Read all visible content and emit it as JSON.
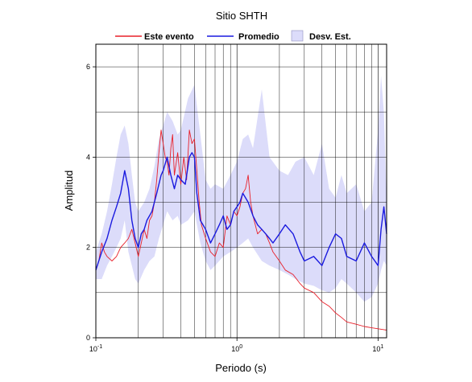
{
  "chart_data": {
    "type": "line",
    "title": "Sitio SHTH",
    "xlabel": "Periodo (s)",
    "ylabel": "Amplitud",
    "x_scale": "log",
    "xlim": [
      0.1,
      11.5
    ],
    "ylim": [
      0,
      6.5
    ],
    "x_ticks": [
      {
        "value": 0.1,
        "base": "10",
        "exp": "-1"
      },
      {
        "value": 1,
        "base": "10",
        "exp": "0"
      },
      {
        "value": 10,
        "base": "10",
        "exp": "1"
      }
    ],
    "y_ticks": [
      {
        "value": 0,
        "label": "0"
      },
      {
        "value": 2,
        "label": "2"
      },
      {
        "value": 4,
        "label": "4"
      },
      {
        "value": 6,
        "label": "6"
      }
    ],
    "grid": true,
    "legend_position": "top",
    "legend": [
      {
        "label": "Este evento",
        "color": "#e8202a",
        "kind": "line"
      },
      {
        "label": "Promedio",
        "color": "#1a1adf",
        "kind": "line"
      },
      {
        "label": "Desv. Est.",
        "color": "#dcdcfa",
        "kind": "band"
      }
    ],
    "series": [
      {
        "name": "Este evento",
        "color": "#e8202a",
        "x": [
          0.1,
          0.105,
          0.11,
          0.115,
          0.12,
          0.13,
          0.14,
          0.15,
          0.16,
          0.17,
          0.18,
          0.19,
          0.2,
          0.21,
          0.22,
          0.23,
          0.24,
          0.25,
          0.26,
          0.27,
          0.28,
          0.29,
          0.3,
          0.31,
          0.32,
          0.33,
          0.34,
          0.35,
          0.36,
          0.38,
          0.4,
          0.42,
          0.44,
          0.46,
          0.48,
          0.5,
          0.52,
          0.54,
          0.56,
          0.6,
          0.65,
          0.7,
          0.75,
          0.8,
          0.85,
          0.9,
          0.95,
          1.0,
          1.05,
          1.1,
          1.15,
          1.2,
          1.25,
          1.3,
          1.4,
          1.5,
          1.6,
          1.7,
          1.8,
          2.0,
          2.2,
          2.5,
          2.8,
          3.0,
          3.5,
          4.0,
          4.5,
          5.0,
          5.5,
          6.0,
          7.0,
          8.0,
          9.0,
          10.0,
          11.0,
          11.5
        ],
        "y": [
          1.5,
          1.7,
          2.1,
          1.9,
          1.8,
          1.7,
          1.8,
          2.0,
          2.1,
          2.2,
          2.4,
          2.1,
          1.8,
          2.1,
          2.4,
          2.2,
          2.6,
          2.7,
          3.0,
          3.5,
          4.1,
          4.6,
          4.3,
          4.0,
          3.9,
          3.6,
          4.2,
          4.5,
          3.6,
          4.1,
          3.4,
          4.0,
          3.5,
          4.6,
          4.3,
          4.4,
          3.7,
          3.0,
          2.5,
          2.2,
          1.9,
          1.8,
          2.1,
          2.0,
          2.7,
          2.5,
          2.8,
          2.7,
          2.9,
          3.2,
          3.3,
          3.6,
          3.0,
          2.7,
          2.3,
          2.4,
          2.3,
          2.1,
          1.9,
          1.7,
          1.5,
          1.4,
          1.2,
          1.1,
          1.0,
          0.8,
          0.7,
          0.55,
          0.45,
          0.35,
          0.3,
          0.25,
          0.22,
          0.2,
          0.18,
          0.17
        ]
      },
      {
        "name": "Promedio",
        "color": "#1a1adf",
        "x": [
          0.1,
          0.11,
          0.12,
          0.13,
          0.14,
          0.15,
          0.16,
          0.17,
          0.18,
          0.19,
          0.2,
          0.21,
          0.22,
          0.23,
          0.25,
          0.27,
          0.29,
          0.3,
          0.32,
          0.34,
          0.36,
          0.38,
          0.4,
          0.43,
          0.46,
          0.48,
          0.5,
          0.52,
          0.55,
          0.6,
          0.65,
          0.7,
          0.75,
          0.8,
          0.85,
          0.9,
          0.95,
          1.0,
          1.05,
          1.1,
          1.15,
          1.2,
          1.3,
          1.4,
          1.5,
          1.6,
          1.7,
          1.8,
          2.0,
          2.2,
          2.5,
          2.8,
          3.0,
          3.5,
          4.0,
          4.5,
          5.0,
          5.5,
          6.0,
          7.0,
          8.0,
          9.0,
          10.0,
          10.5,
          11.0,
          11.5
        ],
        "y": [
          1.5,
          1.9,
          2.2,
          2.6,
          2.9,
          3.2,
          3.7,
          3.3,
          2.6,
          2.2,
          2.0,
          2.3,
          2.4,
          2.6,
          2.8,
          3.2,
          3.6,
          3.7,
          4.0,
          3.6,
          3.3,
          3.6,
          3.5,
          3.4,
          4.0,
          4.1,
          4.0,
          3.2,
          2.6,
          2.4,
          2.1,
          2.3,
          2.5,
          2.7,
          2.4,
          2.5,
          2.8,
          2.9,
          3.0,
          3.2,
          3.1,
          3.0,
          2.7,
          2.5,
          2.4,
          2.3,
          2.2,
          2.1,
          2.3,
          2.5,
          2.3,
          1.9,
          1.7,
          1.8,
          1.6,
          2.0,
          2.3,
          2.2,
          1.8,
          1.7,
          2.1,
          1.8,
          1.6,
          2.4,
          2.9,
          2.3
        ]
      }
    ],
    "band": {
      "name": "Desv. Est.",
      "color": "#dcdcfa",
      "x": [
        0.1,
        0.11,
        0.12,
        0.13,
        0.14,
        0.15,
        0.16,
        0.17,
        0.18,
        0.19,
        0.2,
        0.22,
        0.24,
        0.26,
        0.28,
        0.3,
        0.32,
        0.35,
        0.38,
        0.4,
        0.45,
        0.5,
        0.55,
        0.6,
        0.65,
        0.7,
        0.8,
        0.9,
        1.0,
        1.1,
        1.2,
        1.3,
        1.5,
        1.7,
        2.0,
        2.3,
        2.6,
        3.0,
        3.5,
        4.0,
        4.5,
        5.0,
        5.5,
        6.0,
        7.0,
        8.0,
        9.0,
        10.0,
        10.5,
        11.0,
        11.5
      ],
      "lower": [
        1.3,
        1.3,
        1.6,
        1.8,
        2.0,
        2.2,
        2.6,
        1.9,
        1.6,
        1.3,
        1.2,
        1.5,
        1.7,
        1.8,
        2.2,
        2.5,
        2.8,
        2.6,
        2.7,
        2.5,
        2.6,
        2.8,
        2.1,
        1.7,
        1.5,
        1.6,
        1.8,
        1.9,
        2.0,
        2.1,
        2.2,
        2.0,
        1.7,
        1.6,
        1.5,
        1.4,
        1.3,
        1.2,
        1.15,
        1.05,
        1.0,
        1.1,
        1.3,
        1.2,
        1.0,
        0.8,
        0.9,
        1.2,
        1.5,
        1.7,
        1.6
      ],
      "upper": [
        1.9,
        2.3,
        2.8,
        3.4,
        4.0,
        4.5,
        4.7,
        4.3,
        3.6,
        3.0,
        2.8,
        3.0,
        3.3,
        3.8,
        4.4,
        4.7,
        5.0,
        4.8,
        4.5,
        4.6,
        5.3,
        5.6,
        4.5,
        3.5,
        3.3,
        3.4,
        3.3,
        3.6,
        3.9,
        4.4,
        4.5,
        4.2,
        5.5,
        4.0,
        3.7,
        3.6,
        3.9,
        4.0,
        3.6,
        4.3,
        3.3,
        3.1,
        3.6,
        3.2,
        3.4,
        2.8,
        3.0,
        4.6,
        5.8,
        5.0,
        3.0
      ]
    }
  }
}
